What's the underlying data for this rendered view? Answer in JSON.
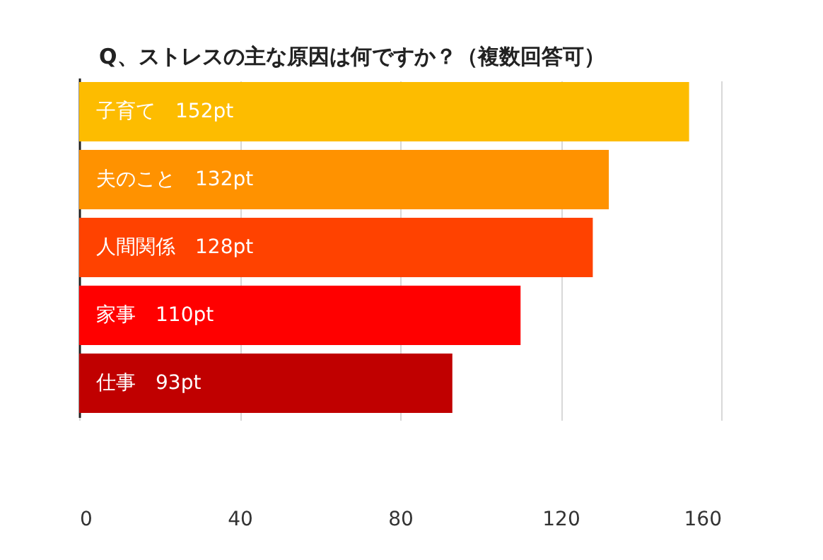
{
  "chart_data": {
    "type": "bar",
    "orientation": "horizontal",
    "title": "Q、ストレスの主な原因は何ですか？（複数回答可）",
    "categories": [
      "子育て",
      "夫のこと",
      "人間関係",
      "家事",
      "仕事"
    ],
    "values": [
      152,
      132,
      128,
      110,
      93
    ],
    "value_labels": [
      "152pt",
      "132pt",
      "128pt",
      "110pt",
      "93pt"
    ],
    "colors": [
      "#fdbc00",
      "#ff9200",
      "#ff4200",
      "#ff0000",
      "#c00000"
    ],
    "xlim": [
      0,
      160
    ],
    "xticks": [
      0,
      40,
      80,
      120,
      160
    ],
    "grid": "x",
    "tick_labels": "x"
  }
}
